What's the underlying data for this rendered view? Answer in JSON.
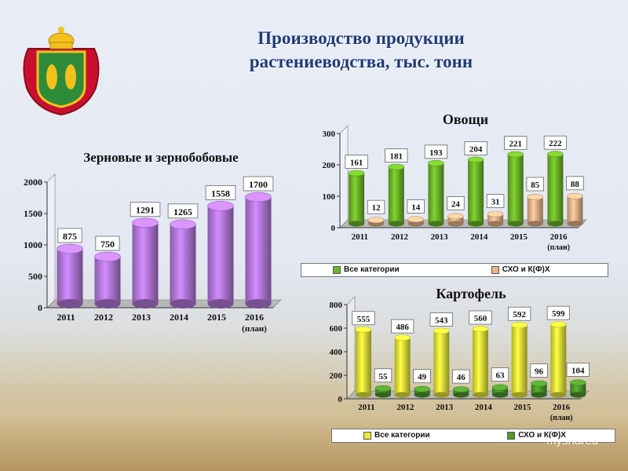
{
  "page": {
    "title_line1": "Производство продукции",
    "title_line2": "растениеводства, тыс. тонн"
  },
  "colors": {
    "title": "#1f3a7a",
    "violet": "#b77be0",
    "green": "#6fb82a",
    "peach": "#eab48c",
    "yellow": "#e8e83a",
    "potato_green": "#4f9a2c"
  },
  "chart_data": [
    {
      "type": "bar",
      "title": "Зерновые и зернобобовые",
      "categories": [
        "2011",
        "2012",
        "2013",
        "2014",
        "2015",
        "2016"
      ],
      "category_sub": [
        "",
        "",
        "",
        "",
        "",
        "(план)"
      ],
      "series": [
        {
          "values": [
            875,
            750,
            1291,
            1265,
            1558,
            1700
          ],
          "color": "#b77be0"
        }
      ],
      "ylim": [
        0,
        2000
      ],
      "yticks": [
        "0",
        "500",
        "1000",
        "1500",
        "2000"
      ]
    },
    {
      "type": "bar",
      "title": "Овощи",
      "categories": [
        "2011",
        "2012",
        "2013",
        "2014",
        "2015",
        "2016"
      ],
      "category_sub": [
        "",
        "",
        "",
        "",
        "",
        "(план)"
      ],
      "series": [
        {
          "name": "Все категории",
          "values": [
            161,
            181,
            193,
            204,
            221,
            222
          ],
          "color": "#6fb82a"
        },
        {
          "name": "СХО и К(Ф)Х",
          "values": [
            12,
            14,
            24,
            31,
            85,
            88
          ],
          "color": "#eab48c"
        }
      ],
      "ylim": [
        0,
        300
      ],
      "yticks": [
        "0",
        "100",
        "200",
        "300"
      ],
      "legend": "bottom"
    },
    {
      "type": "bar",
      "title": "Картофель",
      "categories": [
        "2011",
        "2012",
        "2013",
        "2014",
        "2015",
        "2016"
      ],
      "category_sub": [
        "",
        "",
        "",
        "",
        "",
        "(план)"
      ],
      "series": [
        {
          "name": "Все категории",
          "values": [
            555,
            486,
            543,
            560,
            592,
            599
          ],
          "color": "#e8e83a"
        },
        {
          "name": "СХО и К(Ф)Х",
          "values": [
            55,
            49,
            46,
            63,
            96,
            104
          ],
          "color": "#4f9a2c"
        }
      ],
      "ylim": [
        0,
        800
      ],
      "yticks": [
        "0",
        "200",
        "400",
        "600",
        "800"
      ],
      "legend": "bottom"
    }
  ],
  "watermark": "myshared"
}
